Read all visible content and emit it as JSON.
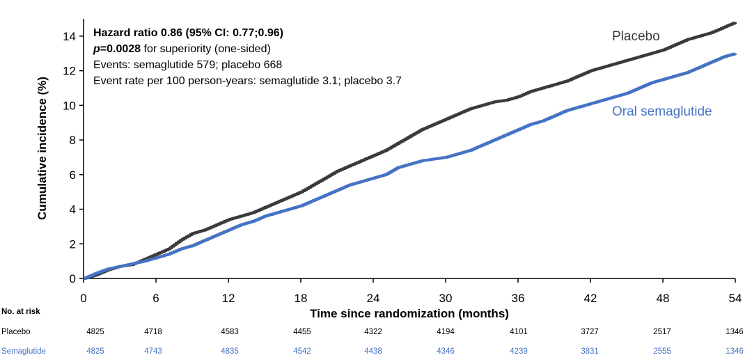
{
  "chart_data": {
    "type": "line",
    "xlabel": "Time since randomization (months)",
    "ylabel": "Cumulative incidence (%)",
    "xlim": [
      0,
      54
    ],
    "ylim": [
      0,
      15
    ],
    "x_ticks": [
      "0",
      "6",
      "12",
      "18",
      "24",
      "30",
      "36",
      "42",
      "48",
      "54"
    ],
    "y_ticks": [
      "0",
      "2",
      "4",
      "6",
      "8",
      "10",
      "12",
      "14"
    ],
    "grid": false,
    "series": [
      {
        "name": "Placebo",
        "color": "#3a3a3a",
        "x": [
          0,
          1,
          2,
          3,
          4,
          5,
          6,
          7,
          8,
          9,
          10,
          11,
          12,
          13,
          14,
          15,
          16,
          17,
          18,
          19,
          20,
          21,
          22,
          23,
          24,
          25,
          26,
          27,
          28,
          29,
          30,
          31,
          32,
          33,
          34,
          35,
          36,
          37,
          38,
          39,
          40,
          41,
          42,
          43,
          44,
          45,
          46,
          47,
          48,
          49,
          50,
          51,
          52,
          53,
          54
        ],
        "y": [
          0,
          0.2,
          0.5,
          0.7,
          0.8,
          1.1,
          1.4,
          1.7,
          2.2,
          2.6,
          2.8,
          3.1,
          3.4,
          3.6,
          3.8,
          4.1,
          4.4,
          4.7,
          5.0,
          5.4,
          5.8,
          6.2,
          6.5,
          6.8,
          7.1,
          7.4,
          7.8,
          8.2,
          8.6,
          8.9,
          9.2,
          9.5,
          9.8,
          10.0,
          10.2,
          10.3,
          10.5,
          10.8,
          11.0,
          11.2,
          11.4,
          11.7,
          12.0,
          12.2,
          12.4,
          12.6,
          12.8,
          13.0,
          13.2,
          13.5,
          13.8,
          14.0,
          14.2,
          14.5,
          14.8
        ]
      },
      {
        "name": "Oral semaglutide",
        "color": "#4472c4",
        "x": [
          0,
          1,
          2,
          3,
          4,
          5,
          6,
          7,
          8,
          9,
          10,
          11,
          12,
          13,
          14,
          15,
          16,
          17,
          18,
          19,
          20,
          21,
          22,
          23,
          24,
          25,
          26,
          27,
          28,
          29,
          30,
          31,
          32,
          33,
          34,
          35,
          36,
          37,
          38,
          39,
          40,
          41,
          42,
          43,
          44,
          45,
          46,
          47,
          48,
          49,
          50,
          51,
          52,
          53,
          54
        ],
        "y": [
          0,
          0.3,
          0.55,
          0.7,
          0.85,
          1.0,
          1.2,
          1.4,
          1.7,
          1.9,
          2.2,
          2.5,
          2.8,
          3.1,
          3.3,
          3.6,
          3.8,
          4.0,
          4.2,
          4.5,
          4.8,
          5.1,
          5.4,
          5.6,
          5.8,
          6.0,
          6.4,
          6.6,
          6.8,
          6.9,
          7.0,
          7.2,
          7.4,
          7.7,
          8.0,
          8.3,
          8.6,
          8.9,
          9.1,
          9.4,
          9.7,
          9.9,
          10.1,
          10.3,
          10.5,
          10.7,
          11.0,
          11.3,
          11.5,
          11.7,
          11.9,
          12.2,
          12.5,
          12.8,
          13.0
        ]
      }
    ],
    "annotations": [
      {
        "bold": "Hazard ratio 0.86 (95% CI: 0.77;0.96)",
        "rest": "",
        "bold_italic_prefix": ""
      },
      {
        "bold_italic_prefix": "p",
        "bold": "=0.0028",
        "rest": " for superiority (one-sided)"
      },
      {
        "bold_italic_prefix": "",
        "bold": "",
        "rest": "Events: semaglutide 579; placebo 668"
      },
      {
        "bold_italic_prefix": "",
        "bold": "",
        "rest": "Event rate per 100 person-years: semaglutide 3.1; placebo 3.7"
      }
    ],
    "risk_table": {
      "header": "No. at risk",
      "rows": [
        {
          "label": "Placebo",
          "color": "#000000",
          "values": [
            "4825",
            "4718",
            "4583",
            "4455",
            "4322",
            "4194",
            "4101",
            "3727",
            "2517",
            "1346"
          ]
        },
        {
          "label": "Semaglutide",
          "color": "#4472c4",
          "values": [
            "4825",
            "4743",
            "4835",
            "4542",
            "4438",
            "4346",
            "4239",
            "3831",
            "2555",
            "1346"
          ]
        }
      ]
    }
  }
}
